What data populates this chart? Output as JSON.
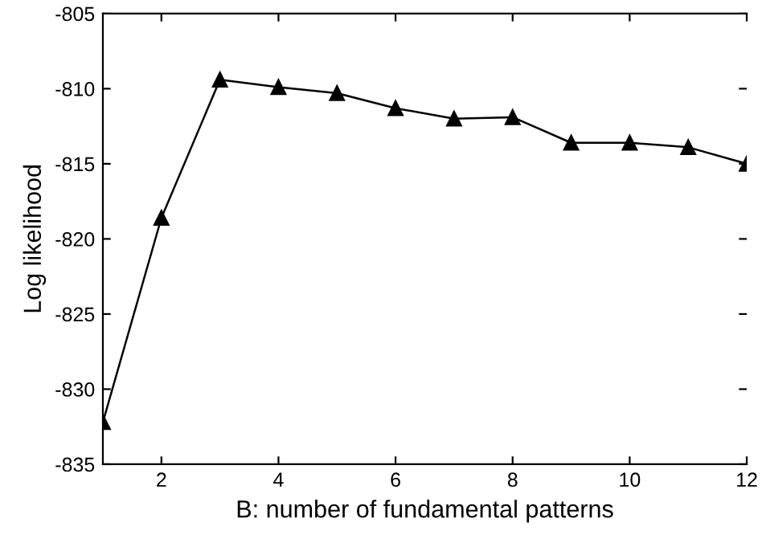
{
  "chart_data": {
    "type": "line",
    "xlabel": "B: number of fundamental patterns",
    "ylabel": "Log likelihood",
    "x": [
      1,
      2,
      3,
      4,
      5,
      6,
      7,
      8,
      9,
      10,
      11,
      12
    ],
    "series": [
      {
        "color": "#000000",
        "values": [
          -832.2,
          -818.6,
          -809.4,
          -809.9,
          -810.3,
          -811.3,
          -812.0,
          -811.9,
          -813.6,
          -813.6,
          -813.9,
          -815.0
        ]
      }
    ],
    "xlim": [
      1,
      12
    ],
    "xticks": [
      2,
      4,
      6,
      8,
      10,
      12
    ],
    "ylim": [
      -835,
      -805
    ],
    "yticks": [
      -835,
      -830,
      -825,
      -820,
      -815,
      -810,
      -805
    ],
    "marker": "triangle",
    "line_style": "solid",
    "grid": false,
    "legend": false
  }
}
